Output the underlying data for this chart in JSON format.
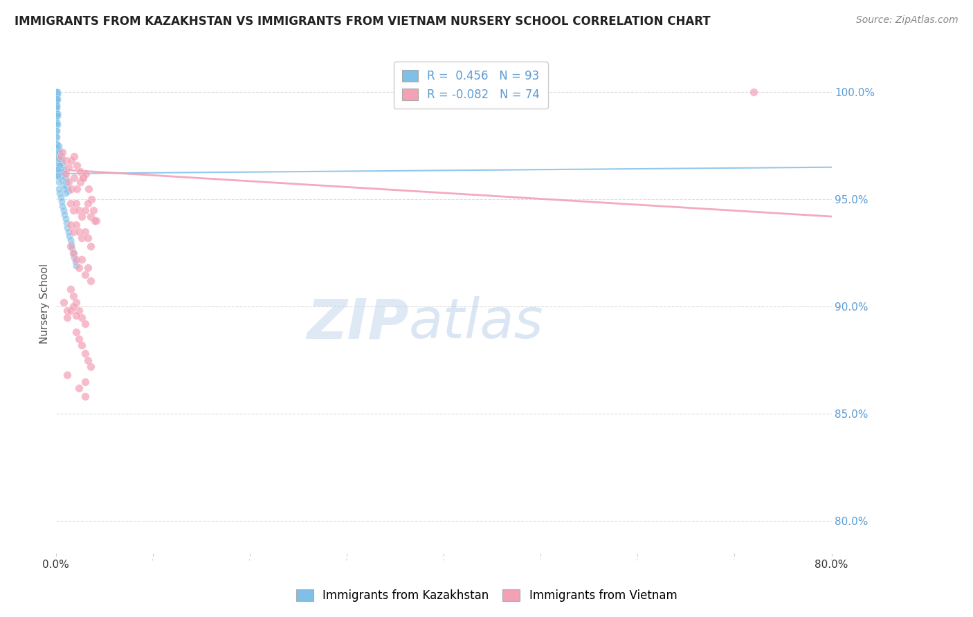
{
  "title": "IMMIGRANTS FROM KAZAKHSTAN VS IMMIGRANTS FROM VIETNAM NURSERY SCHOOL CORRELATION CHART",
  "source": "Source: ZipAtlas.com",
  "ylabel": "Nursery School",
  "ylabel_right_ticks": [
    "100.0%",
    "95.0%",
    "90.0%",
    "85.0%",
    "80.0%"
  ],
  "ylabel_right_vals": [
    1.0,
    0.95,
    0.9,
    0.85,
    0.8
  ],
  "xmin": 0.0,
  "xmax": 0.8,
  "ymin": 0.785,
  "ymax": 1.018,
  "kaz_R": 0.456,
  "kaz_N": 93,
  "viet_R": -0.082,
  "viet_N": 74,
  "kaz_color": "#7fbfe8",
  "viet_color": "#f4a0b5",
  "watermark_zip": "ZIP",
  "watermark_atlas": "atlas",
  "background_color": "#ffffff",
  "grid_color": "#dddddd",
  "kaz_scatter": [
    [
      0.0,
      1.0
    ],
    [
      0.0,
      1.0
    ],
    [
      0.0,
      1.0
    ],
    [
      0.0,
      1.0
    ],
    [
      0.0,
      1.0
    ],
    [
      0.001,
      1.0
    ],
    [
      0.001,
      0.999
    ],
    [
      0.002,
      1.0
    ],
    [
      0.002,
      0.999
    ],
    [
      0.0,
      0.998
    ],
    [
      0.0,
      0.997
    ],
    [
      0.0,
      0.996
    ],
    [
      0.001,
      0.997
    ],
    [
      0.001,
      0.996
    ],
    [
      0.002,
      0.997
    ],
    [
      0.0,
      0.994
    ],
    [
      0.0,
      0.993
    ],
    [
      0.0,
      0.992
    ],
    [
      0.001,
      0.994
    ],
    [
      0.001,
      0.993
    ],
    [
      0.0,
      0.99
    ],
    [
      0.0,
      0.989
    ],
    [
      0.001,
      0.99
    ],
    [
      0.001,
      0.989
    ],
    [
      0.002,
      0.99
    ],
    [
      0.002,
      0.989
    ],
    [
      0.0,
      0.987
    ],
    [
      0.0,
      0.985
    ],
    [
      0.001,
      0.986
    ],
    [
      0.002,
      0.985
    ],
    [
      0.0,
      0.982
    ],
    [
      0.001,
      0.982
    ],
    [
      0.0,
      0.979
    ],
    [
      0.001,
      0.979
    ],
    [
      0.0,
      0.976
    ],
    [
      0.001,
      0.976
    ],
    [
      0.0,
      0.973
    ],
    [
      0.001,
      0.973
    ],
    [
      0.0,
      0.97
    ],
    [
      0.001,
      0.97
    ],
    [
      0.0,
      0.967
    ],
    [
      0.001,
      0.967
    ],
    [
      0.0,
      0.964
    ],
    [
      0.001,
      0.964
    ],
    [
      0.0,
      0.961
    ],
    [
      0.001,
      0.961
    ],
    [
      0.002,
      0.974
    ],
    [
      0.002,
      0.971
    ],
    [
      0.003,
      0.975
    ],
    [
      0.003,
      0.972
    ],
    [
      0.004,
      0.972
    ],
    [
      0.004,
      0.969
    ],
    [
      0.005,
      0.97
    ],
    [
      0.005,
      0.967
    ],
    [
      0.006,
      0.968
    ],
    [
      0.007,
      0.966
    ],
    [
      0.008,
      0.964
    ],
    [
      0.009,
      0.962
    ],
    [
      0.01,
      0.96
    ],
    [
      0.011,
      0.958
    ],
    [
      0.012,
      0.956
    ],
    [
      0.013,
      0.954
    ],
    [
      0.003,
      0.969
    ],
    [
      0.003,
      0.966
    ],
    [
      0.004,
      0.966
    ],
    [
      0.004,
      0.963
    ],
    [
      0.005,
      0.963
    ],
    [
      0.006,
      0.961
    ],
    [
      0.007,
      0.959
    ],
    [
      0.008,
      0.957
    ],
    [
      0.009,
      0.955
    ],
    [
      0.01,
      0.953
    ],
    [
      0.002,
      0.964
    ],
    [
      0.002,
      0.961
    ],
    [
      0.003,
      0.958
    ],
    [
      0.003,
      0.955
    ],
    [
      0.004,
      0.953
    ],
    [
      0.005,
      0.951
    ],
    [
      0.006,
      0.949
    ],
    [
      0.007,
      0.947
    ],
    [
      0.008,
      0.945
    ],
    [
      0.009,
      0.943
    ],
    [
      0.01,
      0.941
    ],
    [
      0.011,
      0.939
    ],
    [
      0.012,
      0.937
    ],
    [
      0.013,
      0.935
    ],
    [
      0.014,
      0.933
    ],
    [
      0.015,
      0.931
    ],
    [
      0.016,
      0.929
    ],
    [
      0.017,
      0.927
    ],
    [
      0.018,
      0.925
    ],
    [
      0.019,
      0.923
    ],
    [
      0.02,
      0.921
    ],
    [
      0.021,
      0.919
    ]
  ],
  "viet_scatter": [
    [
      0.005,
      0.97
    ],
    [
      0.007,
      0.972
    ],
    [
      0.01,
      0.968
    ],
    [
      0.013,
      0.965
    ],
    [
      0.016,
      0.968
    ],
    [
      0.019,
      0.97
    ],
    [
      0.022,
      0.966
    ],
    [
      0.025,
      0.963
    ],
    [
      0.028,
      0.96
    ],
    [
      0.01,
      0.962
    ],
    [
      0.013,
      0.958
    ],
    [
      0.016,
      0.955
    ],
    [
      0.019,
      0.96
    ],
    [
      0.022,
      0.955
    ],
    [
      0.025,
      0.958
    ],
    [
      0.028,
      0.96
    ],
    [
      0.031,
      0.962
    ],
    [
      0.034,
      0.955
    ],
    [
      0.037,
      0.95
    ],
    [
      0.015,
      0.948
    ],
    [
      0.018,
      0.945
    ],
    [
      0.021,
      0.948
    ],
    [
      0.024,
      0.945
    ],
    [
      0.027,
      0.942
    ],
    [
      0.03,
      0.945
    ],
    [
      0.033,
      0.948
    ],
    [
      0.036,
      0.942
    ],
    [
      0.039,
      0.945
    ],
    [
      0.042,
      0.94
    ],
    [
      0.015,
      0.938
    ],
    [
      0.018,
      0.935
    ],
    [
      0.021,
      0.938
    ],
    [
      0.024,
      0.935
    ],
    [
      0.027,
      0.932
    ],
    [
      0.03,
      0.935
    ],
    [
      0.033,
      0.932
    ],
    [
      0.036,
      0.928
    ],
    [
      0.015,
      0.928
    ],
    [
      0.018,
      0.925
    ],
    [
      0.021,
      0.922
    ],
    [
      0.024,
      0.918
    ],
    [
      0.027,
      0.922
    ],
    [
      0.03,
      0.915
    ],
    [
      0.033,
      0.918
    ],
    [
      0.036,
      0.912
    ],
    [
      0.015,
      0.908
    ],
    [
      0.018,
      0.905
    ],
    [
      0.021,
      0.902
    ],
    [
      0.024,
      0.898
    ],
    [
      0.027,
      0.895
    ],
    [
      0.03,
      0.892
    ],
    [
      0.008,
      0.902
    ],
    [
      0.012,
      0.898
    ],
    [
      0.021,
      0.888
    ],
    [
      0.024,
      0.885
    ],
    [
      0.027,
      0.882
    ],
    [
      0.03,
      0.878
    ],
    [
      0.033,
      0.875
    ],
    [
      0.036,
      0.872
    ],
    [
      0.015,
      0.898
    ],
    [
      0.012,
      0.895
    ],
    [
      0.012,
      0.868
    ],
    [
      0.03,
      0.865
    ],
    [
      0.024,
      0.862
    ],
    [
      0.03,
      0.858
    ],
    [
      0.018,
      0.9
    ],
    [
      0.021,
      0.896
    ],
    [
      0.72,
      1.0
    ],
    [
      0.04,
      0.94
    ]
  ],
  "viet_trend_x": [
    0.0,
    0.8
  ],
  "viet_trend_y": [
    0.964,
    0.942
  ]
}
